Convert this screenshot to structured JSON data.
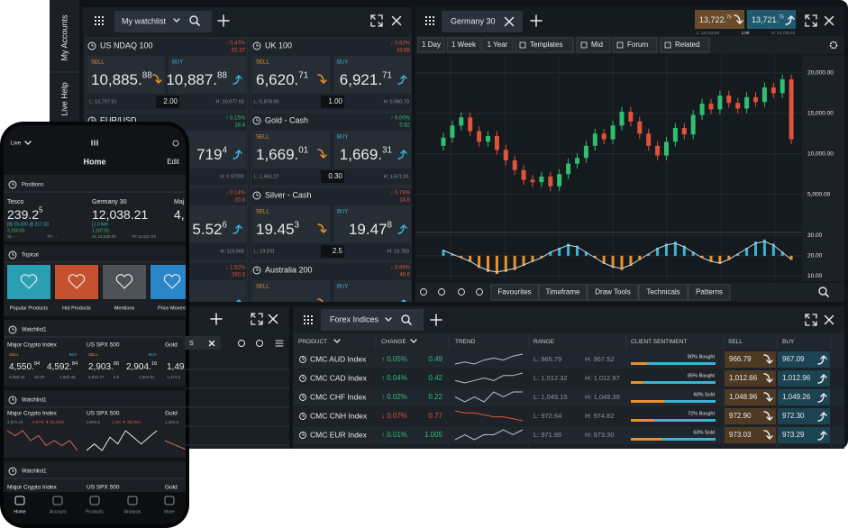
{
  "sidebar": {
    "tabs": [
      "My Accounts",
      "Live Help"
    ]
  },
  "labels": {
    "sell": "SELL",
    "buy": "BUY"
  },
  "watchlist": {
    "title": "My watchlist",
    "tiles": [
      {
        "name": "US NDAQ 100",
        "change": "↓ 0.47%",
        "points": "52.37",
        "dir": "down",
        "sell": [
          "10,885.",
          "88"
        ],
        "buy": [
          "10,887.",
          "88"
        ],
        "spread": "2.00",
        "low": "L: 10,797.91",
        "high": "H: 10,977.60"
      },
      {
        "name": "UK 100",
        "change": "↓ 0.62%",
        "points": "43.68",
        "dir": "down",
        "sell": [
          "6,620.",
          "71"
        ],
        "buy": [
          "6,921.",
          "71"
        ],
        "spread": "1.00",
        "low": "L: 5,878.96",
        "high": "H: 5,980.70"
      },
      {
        "name": "EUR/USD",
        "change": "↑ 0.15%",
        "points": "18.4",
        "dir": "up",
        "buy": [
          "719",
          "4"
        ],
        "high": "H: 0.97200"
      },
      {
        "name": "Gold - Cash",
        "change": "↑ 0.00%",
        "points": "0.62",
        "dir": "up",
        "sell": [
          "1,669.",
          "01"
        ],
        "buy": [
          "1,669.",
          "31"
        ],
        "spread": "0.30",
        "low": "L: 1,661.27",
        "high": "H: 1,671.91"
      },
      {
        "change": "↓ 0.14%",
        "points": "20.6",
        "dir": "down",
        "buy": [
          "5.52",
          "6"
        ],
        "high": "H: 115.665"
      },
      {
        "name": "Silver - Cash",
        "change": "↓ 0.74%",
        "points": "14.6",
        "dir": "down",
        "sell": [
          "19.45",
          "3"
        ],
        "buy": [
          "19.47",
          "8"
        ],
        "spread": "2.5",
        "low": "L: 19.291",
        "high": "H: 19.783"
      },
      {
        "change": "↓ 1.52%",
        "points": "260.3",
        "dir": "down"
      },
      {
        "name": "Australia 200",
        "change": "↓ 0.66%",
        "points": "46.6",
        "dir": "down"
      }
    ]
  },
  "chart": {
    "type": "candlestick",
    "tab": "Germany 30",
    "sell": [
      "13,722.",
      "75"
    ],
    "buy": [
      "13,721.",
      "75"
    ],
    "low": "L: 13,712.50",
    "spread": "1.00",
    "high": "H: 13,733.03",
    "timeframes": [
      "1 Day",
      "1 Week",
      "1 Year"
    ],
    "tools": [
      "Templates",
      "Mid",
      "Forum",
      "Related"
    ],
    "bottom_tools": [
      "Favourites",
      "Timeframe",
      "Draw Tools",
      "Technicals",
      "Patterns"
    ],
    "up_color": "#2fbf71",
    "down_color": "#e0533a",
    "ylim": [
      300,
      22100
    ],
    "yticks": [
      {
        "value": 20000,
        "label": "20,000.00"
      },
      {
        "value": 15000,
        "label": "15,000.00"
      },
      {
        "value": 10000,
        "label": "10,000.00"
      },
      {
        "value": 5000,
        "label": "5,000.00"
      }
    ],
    "candles": [
      [
        11000,
        12600,
        10400,
        12000
      ],
      [
        12000,
        14100,
        11400,
        13500
      ],
      [
        13500,
        15100,
        12900,
        14500
      ],
      [
        14500,
        15100,
        12200,
        12800
      ],
      [
        12800,
        13400,
        10900,
        11500
      ],
      [
        11500,
        12800,
        10900,
        12200
      ],
      [
        12200,
        12800,
        9900,
        10500
      ],
      [
        10500,
        11100,
        8600,
        9200
      ],
      [
        9200,
        9800,
        7400,
        8000
      ],
      [
        8000,
        8600,
        6200,
        6800
      ],
      [
        6800,
        7400,
        5900,
        6500
      ],
      [
        6500,
        7800,
        5900,
        7200
      ],
      [
        7200,
        7800,
        5400,
        6000
      ],
      [
        6000,
        8100,
        5400,
        7500
      ],
      [
        7500,
        9400,
        6900,
        8800
      ],
      [
        8800,
        10100,
        8200,
        9500
      ],
      [
        9500,
        11600,
        8900,
        11000
      ],
      [
        11000,
        13100,
        10400,
        12500
      ],
      [
        12500,
        13100,
        11200,
        11800
      ],
      [
        11800,
        14100,
        11200,
        13500
      ],
      [
        13500,
        15800,
        12900,
        15200
      ],
      [
        15200,
        15800,
        13400,
        14000
      ],
      [
        14000,
        14600,
        11900,
        12500
      ],
      [
        12500,
        13100,
        10400,
        11000
      ],
      [
        11000,
        11600,
        9200,
        9800
      ],
      [
        9800,
        12100,
        9200,
        11500
      ],
      [
        11500,
        13800,
        10900,
        13200
      ],
      [
        13200,
        13800,
        11800,
        12400
      ],
      [
        12400,
        15400,
        11800,
        14800
      ],
      [
        14800,
        16800,
        14200,
        16200
      ],
      [
        16200,
        16800,
        14900,
        15500
      ],
      [
        15500,
        17800,
        14900,
        17200
      ],
      [
        17200,
        17800,
        15700,
        16300
      ],
      [
        16300,
        16900,
        15000,
        15600
      ],
      [
        15600,
        17600,
        15000,
        17000
      ],
      [
        17000,
        17600,
        15800,
        16400
      ],
      [
        16400,
        18800,
        15800,
        18200
      ],
      [
        18200,
        18800,
        16900,
        17500
      ],
      [
        17500,
        19800,
        16900,
        19200
      ],
      [
        19200,
        19800,
        11200,
        11800
      ]
    ],
    "osc": {
      "ylim": [
        7.5,
        31.5
      ],
      "yticks": [
        {
          "value": 30,
          "label": "30.00"
        },
        {
          "value": 20,
          "label": "20.00"
        },
        {
          "value": 10,
          "label": "10.00"
        }
      ],
      "values": [
        23,
        21,
        19,
        17,
        14,
        12,
        11,
        12,
        13,
        15,
        17,
        19,
        22,
        24,
        26,
        25,
        22,
        19,
        16,
        14,
        13,
        15,
        18,
        21,
        24,
        26,
        27,
        25,
        22,
        19,
        17,
        16,
        18,
        21,
        24,
        27,
        28,
        26,
        22,
        18
      ]
    }
  },
  "side_panel": {
    "tab": "S"
  },
  "forex": {
    "title": "Forex Indices",
    "columns": [
      "PRODUCT",
      "CHANGE",
      "TREND",
      "RANGE",
      "CLIENT SENTIMENT",
      "SELL",
      "BUY"
    ],
    "rows": [
      {
        "product": "CMC AUD Index",
        "change": "↑ 0.05%",
        "points": "0.49",
        "dir": "up",
        "trend": [
          3,
          4,
          3,
          5,
          6,
          5,
          7,
          8
        ],
        "low": "L: 965.79",
        "high": "H: 967.52",
        "sentiment": {
          "pct": 80,
          "label": "80% Bought"
        },
        "sell": "966.79",
        "buy": "967.09"
      },
      {
        "product": "CMC CAD Index",
        "change": "↑ 0.04%",
        "points": "0.42",
        "dir": "up",
        "trend": [
          4,
          3,
          4,
          5,
          4,
          6,
          6,
          7
        ],
        "low": "L: 1,012.32",
        "high": "H: 1,012.97",
        "sentiment": {
          "pct": 85,
          "label": "85% Bought"
        },
        "sell": "1,012.66",
        "buy": "1,012.96"
      },
      {
        "product": "CMC CHF Index",
        "change": "↑ 0.02%",
        "points": "0.22",
        "dir": "up",
        "trend": [
          5,
          4,
          5,
          4,
          6,
          5,
          6,
          6
        ],
        "low": "L: 1,049.15",
        "high": "H: 1,049.39",
        "sentiment": {
          "pct": 60,
          "label": "60% Sold"
        },
        "sell": "1,048.96",
        "buy": "1,049.26"
      },
      {
        "product": "CMC CNH Index",
        "change": "↓ 0.07%",
        "points": "0.77",
        "dir": "down",
        "trend": [
          8,
          7,
          7,
          6,
          5,
          5,
          4,
          3
        ],
        "low": "L: 972.64",
        "high": "H: 974.82",
        "sentiment": {
          "pct": 72,
          "label": "72% Bought"
        },
        "sell": "972.90",
        "buy": "972.30"
      },
      {
        "product": "CMC EUR Index",
        "change": "↑ 0.01%",
        "points": "1.005",
        "dir": "up",
        "trend": [
          4,
          5,
          4,
          5,
          5,
          6,
          5,
          6
        ],
        "low": "L: 971.86",
        "high": "H: 973.30",
        "sentiment": {
          "pct": 63,
          "label": "63% Sold"
        },
        "sell": "973.03",
        "buy": "973.29"
      }
    ]
  },
  "phone": {
    "status": "Live",
    "title": "Home",
    "edit": "Edit",
    "positions": {
      "title": "Positions",
      "items": [
        {
          "name": "Tesco",
          "price": [
            "239.2",
            "5"
          ],
          "lines": [
            "[B] 15,000 @ 217.33",
            "3,250.50"
          ],
          "foot": [
            "SL - -",
            "TP - -"
          ]
        },
        {
          "name": "Germany 30",
          "price": [
            "12,038.21"
          ],
          "lines": [
            "[-] 0 Net",
            "1,187.91"
          ],
          "foot": [
            "SL 12,530.00",
            "TP 12,637.03"
          ]
        },
        {
          "name": "Maj",
          "price": [
            "4,"
          ]
        }
      ]
    },
    "topical": {
      "title": "Topical",
      "cards": [
        "Popular Products",
        "Hot Products",
        "Mentions",
        "Price Movers"
      ]
    },
    "watchlist1": {
      "title": "Watchlist1",
      "items": [
        {
          "name": "Major Crypto Index",
          "sell": [
            "4,550.",
            "84"
          ],
          "buy": [
            "4,592.",
            "84"
          ],
          "foot": [
            "4,550.46",
            "52.00",
            "4,602.48"
          ]
        },
        {
          "name": "US SPX 500",
          "sell": [
            "2,903.",
            "66"
          ],
          "buy": [
            "2,904.",
            "16"
          ],
          "foot": [
            "2,902.27",
            "5.0",
            "2,904.91"
          ]
        },
        {
          "name": "Gold",
          "sell": [
            "1,49"
          ],
          "foot": [
            "1,474.6"
          ]
        }
      ]
    },
    "watchlist2": {
      "title": "Watchlist1",
      "items": [
        {
          "name": "Major Crypto Index",
          "change": [
            "4,571.24",
            "0.87% ▼ 39.25%"
          ],
          "trend": [
            6,
            5,
            6,
            4,
            5,
            3,
            4,
            3,
            4,
            2
          ]
        },
        {
          "name": "US SPX 500",
          "change": [
            "2,903.9",
            "1.3% ▼ 38.25%"
          ],
          "trend": [
            3,
            4,
            3,
            5,
            4,
            6,
            5,
            4,
            5,
            6
          ]
        },
        {
          "name": "Gold",
          "change": [
            "1,494.a"
          ],
          "trend": [
            4,
            3,
            5,
            4
          ]
        }
      ]
    },
    "watchlist3": {
      "title": "Watchlist1",
      "items": [
        {
          "name": "Major Crypto Index"
        },
        {
          "name": "US SPX 500"
        },
        {
          "name": "Gold"
        }
      ]
    },
    "nav": [
      "Home",
      "Account",
      "Products",
      "Analysis",
      "More"
    ]
  }
}
